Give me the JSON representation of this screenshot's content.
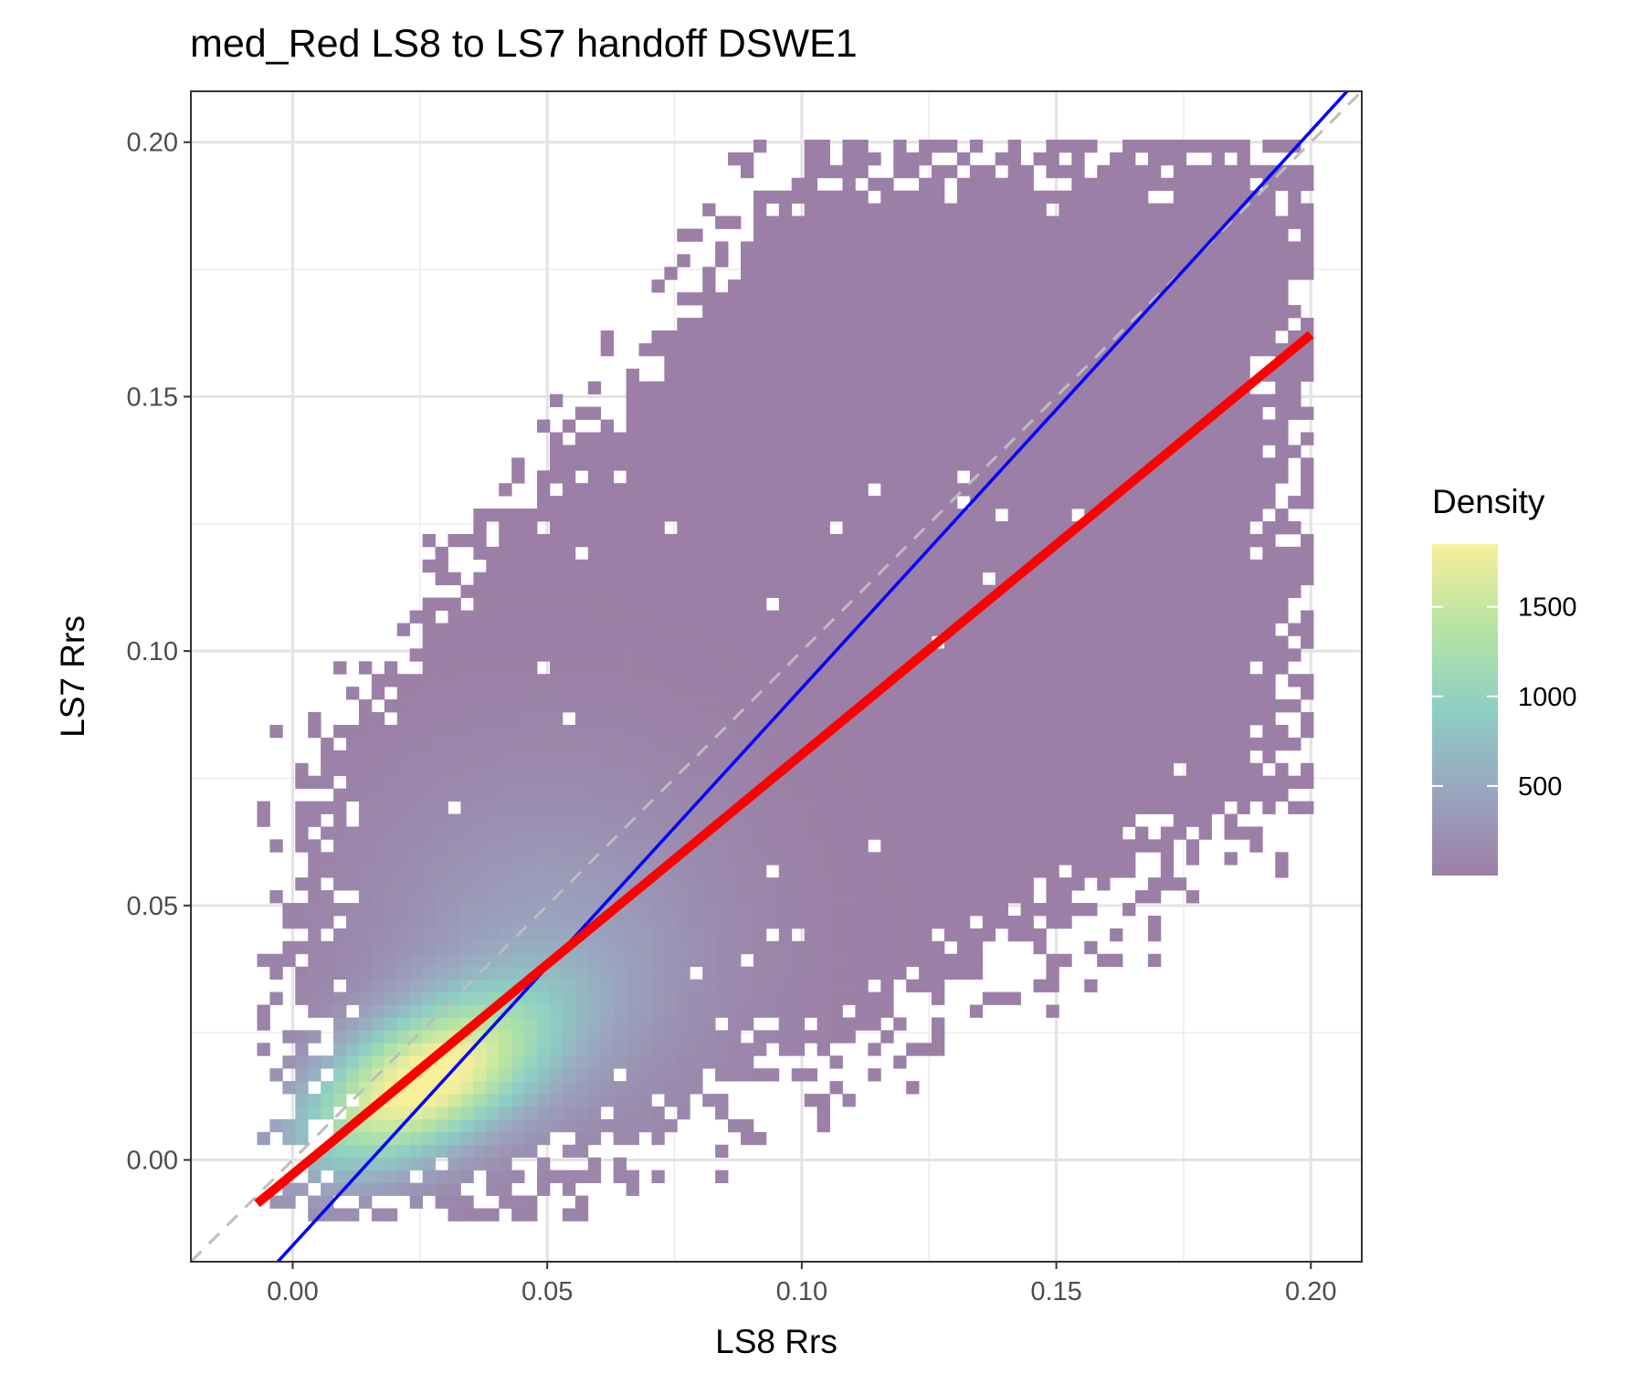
{
  "chart_data": {
    "type": "heatmap",
    "subtype": "2d-density-scatter",
    "title": "med_Red LS8 to LS7 handoff DSWE1",
    "xlabel": "LS8 Rrs",
    "ylabel": "LS7 Rrs",
    "xlim": [
      -0.02,
      0.21
    ],
    "ylim": [
      -0.02,
      0.21
    ],
    "x_ticks": [
      0.0,
      0.05,
      0.1,
      0.15,
      0.2
    ],
    "x_tick_labels": [
      "0.00",
      "0.05",
      "0.10",
      "0.15",
      "0.20"
    ],
    "y_ticks": [
      0.0,
      0.05,
      0.1,
      0.15,
      0.2
    ],
    "y_tick_labels": [
      "0.00",
      "0.05",
      "0.10",
      "0.15",
      "0.20"
    ],
    "grid": true,
    "legend": {
      "title": "Density",
      "placement": "right",
      "scale": "viridis",
      "range": [
        0,
        1850
      ],
      "ticks": [
        500,
        1000,
        1500
      ],
      "tick_labels": [
        "500",
        "1000",
        "1500"
      ]
    },
    "density": {
      "x_range": [
        0.0,
        0.2
      ],
      "y_range": [
        -0.01,
        0.2
      ],
      "peak": [
        0.025,
        0.015
      ],
      "max_value": 1850,
      "background_value": 80
    },
    "lines": [
      {
        "type": "one-to-one",
        "style": "dashed",
        "color": "#bdbdbd",
        "slope": 1.0,
        "intercept": 0.0
      },
      {
        "type": "reference",
        "style": "solid",
        "color": "#0000ff",
        "slope": 1.095,
        "intercept": -0.0168
      },
      {
        "type": "regression",
        "style": "solid",
        "color": "#ff0000",
        "slope": 0.825,
        "intercept": -0.0028,
        "x_range": [
          -0.007,
          0.2
        ]
      }
    ]
  }
}
